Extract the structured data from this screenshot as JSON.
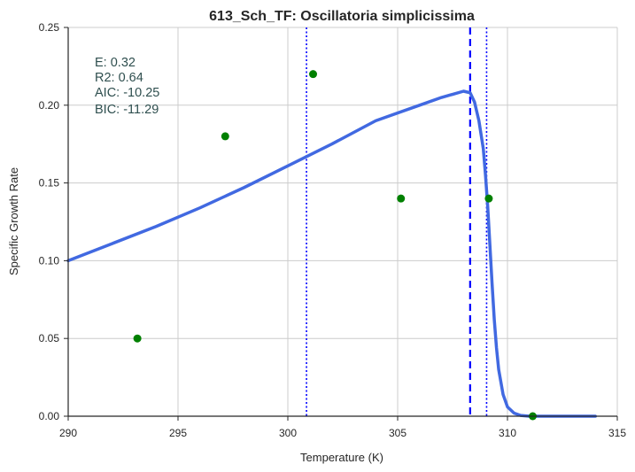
{
  "chart_data": {
    "type": "scatter",
    "title": "613_Sch_TF: Oscillatoria simplicissima",
    "xlabel": "Temperature (K)",
    "ylabel": "Specific Growth Rate",
    "xlim": [
      290,
      315
    ],
    "ylim": [
      0,
      0.25
    ],
    "xticks": [
      290,
      295,
      300,
      305,
      310,
      315
    ],
    "yticks": [
      0.0,
      0.05,
      0.1,
      0.15,
      0.2,
      0.25
    ],
    "xtick_labels": [
      "290",
      "295",
      "300",
      "305",
      "310",
      "315"
    ],
    "ytick_labels": [
      "0.00",
      "0.05",
      "0.10",
      "0.15",
      "0.20",
      "0.25"
    ],
    "grid": true,
    "stats": [
      "E:  0.32",
      "R2:  0.64",
      "AIC: -10.25",
      "BIC: -11.29"
    ],
    "points": {
      "color": "#008000",
      "x": [
        293.15,
        297.15,
        301.15,
        305.15,
        309.15,
        311.15
      ],
      "y": [
        0.05,
        0.18,
        0.22,
        0.14,
        0.14,
        0.0
      ]
    },
    "fit_curve": {
      "color": "#4169e1",
      "x": [
        290.0,
        292.0,
        294.0,
        296.0,
        298.0,
        300.0,
        302.0,
        304.0,
        306.0,
        307.0,
        307.5,
        308.0,
        308.3,
        308.5,
        308.7,
        308.9,
        309.0,
        309.1,
        309.2,
        309.3,
        309.4,
        309.5,
        309.6,
        309.8,
        310.0,
        310.3,
        310.6,
        311.0,
        312.0,
        313.0,
        314.0
      ],
      "y": [
        0.1,
        0.111,
        0.122,
        0.134,
        0.147,
        0.161,
        0.175,
        0.19,
        0.2,
        0.205,
        0.207,
        0.209,
        0.208,
        0.202,
        0.19,
        0.172,
        0.155,
        0.135,
        0.11,
        0.085,
        0.062,
        0.044,
        0.03,
        0.014,
        0.006,
        0.002,
        0.0005,
        0.0,
        0.0,
        0.0,
        0.0
      ]
    },
    "vlines": [
      {
        "x": 300.85,
        "style": "dotted",
        "color": "#0000ff"
      },
      {
        "x": 308.3,
        "style": "dashed",
        "color": "#0000ff"
      },
      {
        "x": 309.05,
        "style": "dotted",
        "color": "#0000ff"
      }
    ]
  }
}
